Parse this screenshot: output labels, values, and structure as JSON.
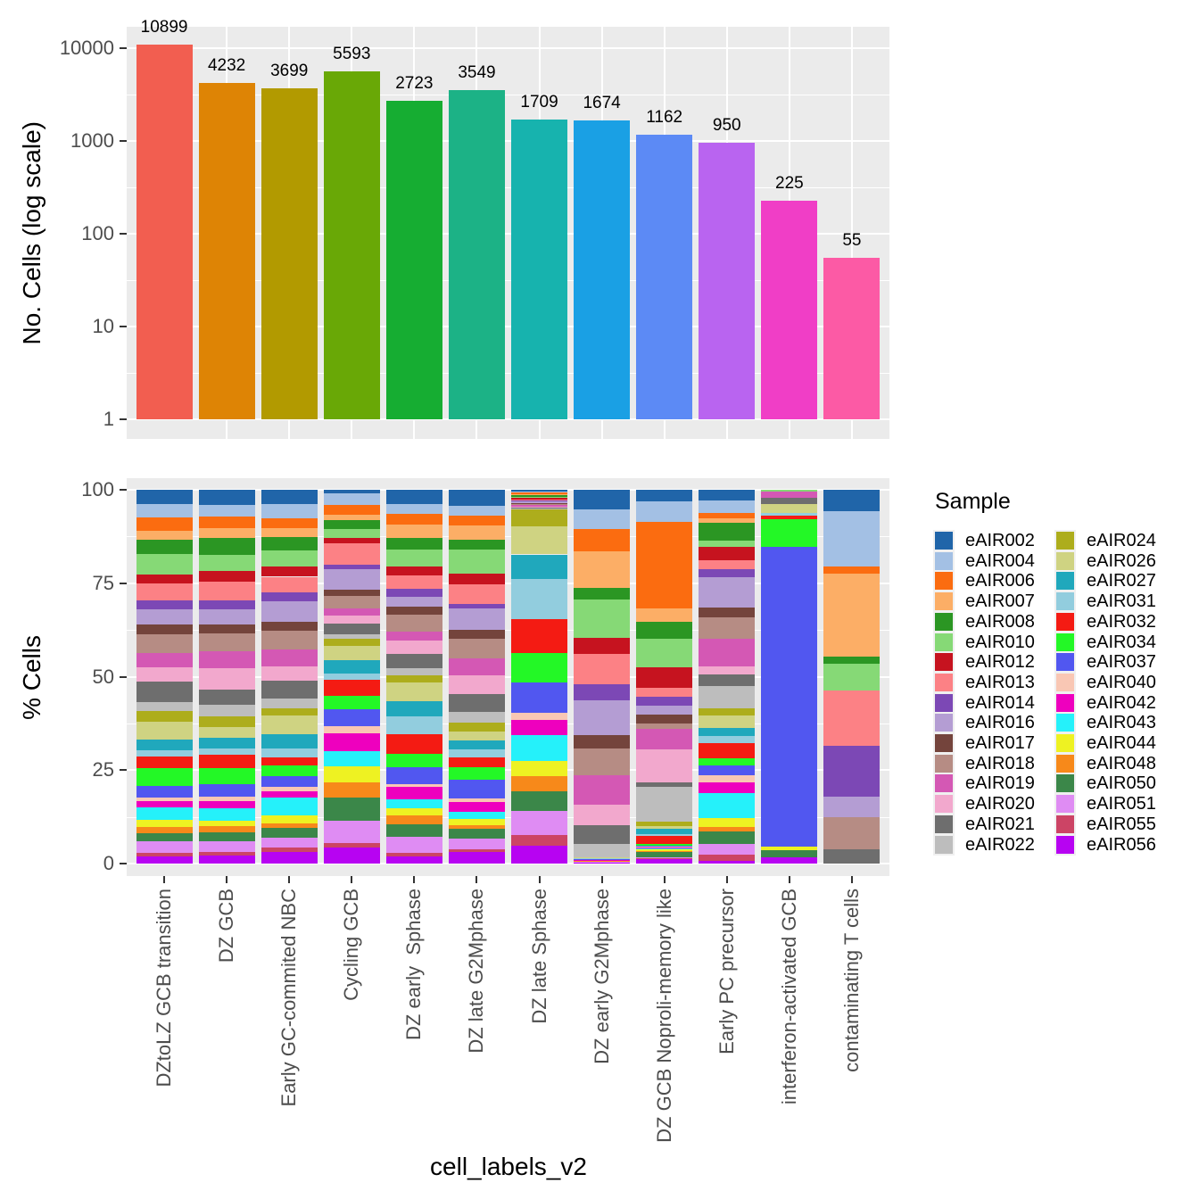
{
  "chart_data": [
    {
      "type": "bar",
      "title": "",
      "ylabel": "No. Cells (log scale)",
      "yscale": "log10",
      "yticks": [
        1,
        10,
        100,
        1000,
        10000
      ],
      "grid": true,
      "categories": [
        "DZtoLZ GCB transition",
        "DZ GCB",
        "Early GC-commited NBC",
        "Cycling GCB",
        "DZ early  Sphase",
        "DZ late G2Mphase",
        "DZ late Sphase",
        "DZ early G2Mphase",
        "DZ GCB Noproli-memory like",
        "Early PC precursor",
        "interferon-activated GCB",
        "contaminating T cells"
      ],
      "values": [
        10899,
        4232,
        3699,
        5593,
        2723,
        3549,
        1709,
        1674,
        1162,
        950,
        225,
        55
      ],
      "value_labels": [
        "10899",
        "4232",
        "3699",
        "5593",
        "2723",
        "3549",
        "1709",
        "1674",
        "1162",
        "950",
        "225",
        "55"
      ],
      "bar_colors": [
        "#F25E50",
        "#DE8405",
        "#B29A00",
        "#69A806",
        "#16AD32",
        "#1CB286",
        "#17B3AE",
        "#1AA0E4",
        "#5C8AF5",
        "#B964F0",
        "#F03EC6",
        "#FC5AA5"
      ]
    },
    {
      "type": "stacked_bar_percent",
      "ylabel": "% Cells",
      "xlabel": "cell_labels_v2",
      "yticks": [
        0,
        25,
        50,
        75,
        100
      ],
      "grid": true,
      "legend_title": "Sample",
      "legend_position": "right",
      "categories": [
        "DZtoLZ GCB transition",
        "DZ GCB",
        "Early GC-commited NBC",
        "Cycling GCB",
        "DZ early  Sphase",
        "DZ late G2Mphase",
        "DZ late Sphase",
        "DZ early G2Mphase",
        "DZ GCB Noproli-memory like",
        "Early PC precursor",
        "interferon-activated GCB",
        "contaminating T cells"
      ],
      "samples": [
        {
          "name": "eAIR002",
          "color": "#2065A9"
        },
        {
          "name": "eAIR004",
          "color": "#A3C0E4"
        },
        {
          "name": "eAIR006",
          "color": "#FB6C10"
        },
        {
          "name": "eAIR007",
          "color": "#FCAE66"
        },
        {
          "name": "eAIR008",
          "color": "#2B9623"
        },
        {
          "name": "eAIR010",
          "color": "#86D976"
        },
        {
          "name": "eAIR012",
          "color": "#C6131F"
        },
        {
          "name": "eAIR013",
          "color": "#FC8185"
        },
        {
          "name": "eAIR014",
          "color": "#7C48B5"
        },
        {
          "name": "eAIR016",
          "color": "#B49DD3"
        },
        {
          "name": "eAIR017",
          "color": "#74443C"
        },
        {
          "name": "eAIR018",
          "color": "#B68C84"
        },
        {
          "name": "eAIR019",
          "color": "#D458B4"
        },
        {
          "name": "eAIR020",
          "color": "#F2A8CD"
        },
        {
          "name": "eAIR021",
          "color": "#6E6E6E"
        },
        {
          "name": "eAIR022",
          "color": "#BDBDBD"
        },
        {
          "name": "eAIR024",
          "color": "#ADAD1C"
        },
        {
          "name": "eAIR026",
          "color": "#CFD382"
        },
        {
          "name": "eAIR027",
          "color": "#20A8BC"
        },
        {
          "name": "eAIR031",
          "color": "#92CDDE"
        },
        {
          "name": "eAIR032",
          "color": "#F41B13"
        },
        {
          "name": "eAIR034",
          "color": "#23F826"
        },
        {
          "name": "eAIR037",
          "color": "#5157F0"
        },
        {
          "name": "eAIR040",
          "color": "#F9C7B4"
        },
        {
          "name": "eAIR042",
          "color": "#EE00BE"
        },
        {
          "name": "eAIR043",
          "color": "#25F1FA"
        },
        {
          "name": "eAIR044",
          "color": "#EEF222"
        },
        {
          "name": "eAIR048",
          "color": "#F7891A"
        },
        {
          "name": "eAIR050",
          "color": "#3B8749"
        },
        {
          "name": "eAIR051",
          "color": "#DF8CF3"
        },
        {
          "name": "eAIR055",
          "color": "#CC4465"
        },
        {
          "name": "eAIR056",
          "color": "#B703F2"
        }
      ],
      "percent_by_category": [
        [
          3.9,
          3.4,
          3.6,
          2.4,
          3.8,
          5.6,
          2.4,
          4.4,
          2.4,
          4.0,
          2.7,
          5.1,
          3.8,
          3.8,
          5.5,
          2.4,
          2.7,
          4.8,
          3.0,
          1.6,
          3.0,
          4.8,
          3.1,
          1.0,
          1.6,
          3.5,
          1.9,
          1.6,
          2.2,
          3.0,
          1.0,
          1.9
        ],
        [
          4.0,
          3.1,
          3.2,
          2.6,
          4.4,
          4.4,
          2.8,
          5.0,
          2.4,
          4.0,
          2.4,
          4.8,
          4.4,
          5.7,
          4.0,
          3.2,
          2.8,
          3.0,
          2.7,
          1.6,
          3.6,
          4.4,
          3.2,
          1.2,
          2.0,
          3.2,
          1.6,
          1.6,
          2.4,
          2.8,
          1.0,
          2.1
        ],
        [
          3.9,
          3.6,
          2.8,
          2.4,
          3.5,
          4.2,
          2.8,
          4.2,
          2.4,
          5.5,
          2.3,
          5.0,
          4.4,
          3.9,
          4.8,
          2.6,
          2.0,
          4.8,
          3.9,
          2.4,
          2.2,
          2.8,
          2.8,
          1.2,
          1.8,
          4.7,
          2.0,
          1.2,
          2.6,
          2.7,
          1.2,
          3.1
        ],
        [
          1.0,
          2.9,
          2.6,
          1.6,
          2.3,
          2.2,
          1.6,
          5.5,
          1.2,
          5.5,
          1.6,
          3.2,
          2.0,
          2.0,
          2.8,
          1.2,
          2.0,
          3.6,
          3.6,
          1.6,
          4.3,
          3.6,
          4.3,
          2.0,
          4.7,
          4.0,
          4.3,
          4.0,
          5.9,
          5.9,
          1.2,
          4.3
        ],
        [
          3.7,
          2.7,
          2.9,
          3.4,
          3.2,
          4.4,
          2.4,
          3.6,
          2.0,
          2.8,
          2.0,
          4.6,
          2.3,
          3.6,
          3.6,
          2.0,
          2.0,
          4.8,
          4.0,
          4.8,
          5.2,
          3.6,
          4.4,
          0.8,
          3.2,
          2.4,
          2.0,
          2.4,
          3.2,
          4.2,
          1.0,
          1.9
        ],
        [
          4.3,
          2.7,
          2.6,
          3.6,
          2.8,
          6.3,
          3.0,
          5.1,
          1.1,
          5.9,
          2.4,
          5.2,
          4.4,
          5.1,
          4.6,
          3.0,
          2.3,
          2.4,
          2.4,
          2.0,
          2.8,
          3.2,
          5.1,
          1.0,
          2.4,
          2.0,
          1.6,
          1.0,
          2.6,
          2.8,
          0.8,
          3.1
        ],
        [
          0.4,
          0.4,
          0.3,
          0.3,
          0.5,
          0.3,
          0.3,
          0.3,
          0.3,
          0.4,
          0.3,
          0.3,
          0.3,
          0.3,
          0.3,
          0.3,
          4.4,
          7.5,
          6.6,
          10.5,
          9.0,
          7.9,
          8.2,
          1.9,
          4.0,
          6.9,
          4.0,
          4.0,
          5.2,
          6.5,
          2.8,
          4.7
        ],
        [
          5.3,
          5.2,
          5.9,
          9.9,
          3.2,
          10.2,
          4.3,
          8.1,
          4.4,
          9.1,
          3.8,
          7.1,
          7.9,
          5.4,
          5.1,
          3.5,
          0.1,
          0.1,
          0.1,
          0.1,
          0.1,
          0.1,
          0.1,
          0.1,
          0.1,
          0.1,
          0.1,
          0.1,
          0.1,
          0.1,
          0.1,
          0.2
        ],
        [
          3.1,
          5.5,
          23.1,
          3.6,
          4.7,
          7.6,
          5.5,
          2.4,
          2.4,
          2.4,
          2.3,
          1.4,
          5.6,
          8.9,
          1.2,
          9.3,
          1.2,
          0.6,
          1.4,
          0.6,
          2.1,
          0.6,
          0.2,
          0.2,
          0.2,
          0.3,
          0.4,
          0.4,
          1.3,
          0.3,
          0.2,
          1.2
        ],
        [
          2.9,
          3.2,
          1.4,
          1.2,
          4.7,
          1.8,
          3.5,
          2.4,
          2.0,
          8.1,
          2.7,
          5.5,
          7.4,
          2.2,
          3.0,
          5.8,
          2.0,
          3.2,
          2.3,
          1.8,
          4.0,
          2.0,
          2.4,
          1.9,
          3.0,
          6.6,
          2.4,
          1.1,
          3.2,
          2.9,
          1.6,
          0.8
        ],
        [
          0,
          0,
          0,
          0,
          0,
          0.5,
          0,
          0,
          0,
          0,
          0,
          0,
          1.6,
          0,
          1.6,
          0,
          0,
          2.4,
          0,
          0.8,
          1.0,
          7.4,
          79.8,
          0,
          0,
          0,
          1.0,
          0,
          1.9,
          0,
          0,
          1.6
        ],
        [
          5.6,
          14.8,
          1.9,
          22.1,
          2.1,
          7.0,
          0,
          14.8,
          13.5,
          5.6,
          0,
          8.6,
          0,
          0,
          3.7,
          0,
          0,
          0,
          0,
          0,
          0,
          0,
          0,
          0,
          0,
          0,
          0,
          0,
          0,
          0,
          0,
          0
        ]
      ]
    }
  ],
  "colors": {
    "panel_background": "#EBEBEB",
    "gridline": "#ffffff",
    "tick_text": "#4D4D4D",
    "axis_title_text": "#000000"
  }
}
